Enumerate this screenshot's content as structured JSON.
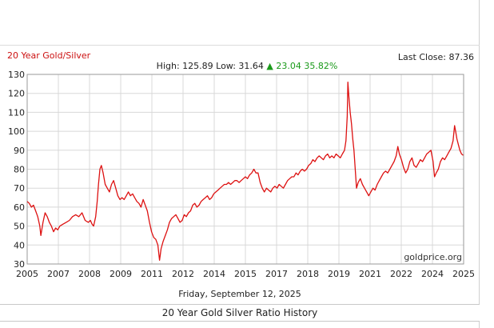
{
  "header": {
    "title": "20 Year Gold/Silver",
    "last_close_label": "Last Close: 87.36",
    "stats_prefix": "High: 125.89  Low: 31.64",
    "stats_arrow": "▲",
    "stats_change": "23.04 35.82%",
    "watermark": "goldprice.org"
  },
  "date_label": "Friday, September 12, 2025",
  "footer_title": "20 Year Gold Silver Ratio History",
  "colors": {
    "line": "#dd1111",
    "up": "#1a9a1a",
    "grid": "#d8d8d8"
  },
  "chart_data": {
    "type": "line",
    "xlim": [
      2005,
      2025.7
    ],
    "ylim": [
      30,
      130
    ],
    "x_ticks": [
      "2005",
      "2007",
      "2008",
      "2009",
      "2011",
      "2012",
      "2014",
      "2015",
      "2017",
      "2018",
      "2019",
      "2021",
      "2022",
      "2024",
      "2025"
    ],
    "y_ticks": [
      30,
      40,
      50,
      60,
      70,
      80,
      90,
      100,
      110,
      120,
      130
    ],
    "grid": true,
    "series": [
      {
        "points": [
          [
            2005.0,
            63
          ],
          [
            2005.1,
            62
          ],
          [
            2005.2,
            60
          ],
          [
            2005.3,
            61
          ],
          [
            2005.4,
            58
          ],
          [
            2005.5,
            55
          ],
          [
            2005.6,
            50
          ],
          [
            2005.65,
            45
          ],
          [
            2005.75,
            52
          ],
          [
            2005.85,
            57
          ],
          [
            2005.95,
            55
          ],
          [
            2006.05,
            52
          ],
          [
            2006.15,
            50
          ],
          [
            2006.25,
            47
          ],
          [
            2006.35,
            49
          ],
          [
            2006.45,
            48
          ],
          [
            2006.55,
            50
          ],
          [
            2006.7,
            51
          ],
          [
            2006.85,
            52
          ],
          [
            2007.0,
            53
          ],
          [
            2007.15,
            55
          ],
          [
            2007.3,
            56
          ],
          [
            2007.45,
            55
          ],
          [
            2007.6,
            57
          ],
          [
            2007.75,
            53
          ],
          [
            2007.9,
            52
          ],
          [
            2008.0,
            53
          ],
          [
            2008.08,
            51
          ],
          [
            2008.15,
            50
          ],
          [
            2008.25,
            55
          ],
          [
            2008.32,
            63
          ],
          [
            2008.38,
            72
          ],
          [
            2008.45,
            80
          ],
          [
            2008.52,
            82
          ],
          [
            2008.6,
            78
          ],
          [
            2008.7,
            72
          ],
          [
            2008.8,
            70
          ],
          [
            2008.9,
            68
          ],
          [
            2009.0,
            72
          ],
          [
            2009.1,
            74
          ],
          [
            2009.2,
            70
          ],
          [
            2009.3,
            66
          ],
          [
            2009.4,
            64
          ],
          [
            2009.5,
            65
          ],
          [
            2009.6,
            64
          ],
          [
            2009.7,
            66
          ],
          [
            2009.8,
            68
          ],
          [
            2009.9,
            66
          ],
          [
            2010.0,
            67
          ],
          [
            2010.1,
            65
          ],
          [
            2010.2,
            63
          ],
          [
            2010.3,
            62
          ],
          [
            2010.4,
            60
          ],
          [
            2010.5,
            64
          ],
          [
            2010.6,
            61
          ],
          [
            2010.7,
            58
          ],
          [
            2010.8,
            52
          ],
          [
            2010.9,
            47
          ],
          [
            2011.0,
            44
          ],
          [
            2011.1,
            43
          ],
          [
            2011.2,
            40
          ],
          [
            2011.28,
            32
          ],
          [
            2011.35,
            38
          ],
          [
            2011.45,
            42
          ],
          [
            2011.55,
            45
          ],
          [
            2011.65,
            48
          ],
          [
            2011.75,
            52
          ],
          [
            2011.85,
            54
          ],
          [
            2011.95,
            55
          ],
          [
            2012.05,
            56
          ],
          [
            2012.15,
            54
          ],
          [
            2012.25,
            52
          ],
          [
            2012.35,
            53
          ],
          [
            2012.45,
            56
          ],
          [
            2012.55,
            55
          ],
          [
            2012.65,
            57
          ],
          [
            2012.75,
            58
          ],
          [
            2012.85,
            61
          ],
          [
            2012.95,
            62
          ],
          [
            2013.05,
            60
          ],
          [
            2013.15,
            61
          ],
          [
            2013.25,
            63
          ],
          [
            2013.35,
            64
          ],
          [
            2013.45,
            65
          ],
          [
            2013.55,
            66
          ],
          [
            2013.65,
            64
          ],
          [
            2013.75,
            65
          ],
          [
            2013.85,
            67
          ],
          [
            2013.95,
            68
          ],
          [
            2014.05,
            69
          ],
          [
            2014.15,
            70
          ],
          [
            2014.25,
            71
          ],
          [
            2014.35,
            72
          ],
          [
            2014.45,
            72
          ],
          [
            2014.55,
            73
          ],
          [
            2014.65,
            72
          ],
          [
            2014.75,
            73
          ],
          [
            2014.85,
            74
          ],
          [
            2014.95,
            74
          ],
          [
            2015.05,
            73
          ],
          [
            2015.15,
            74
          ],
          [
            2015.25,
            75
          ],
          [
            2015.35,
            76
          ],
          [
            2015.45,
            75
          ],
          [
            2015.55,
            77
          ],
          [
            2015.65,
            78
          ],
          [
            2015.75,
            80
          ],
          [
            2015.85,
            78
          ],
          [
            2015.95,
            78
          ],
          [
            2016.05,
            73
          ],
          [
            2016.15,
            70
          ],
          [
            2016.25,
            68
          ],
          [
            2016.35,
            70
          ],
          [
            2016.45,
            69
          ],
          [
            2016.55,
            68
          ],
          [
            2016.65,
            70
          ],
          [
            2016.75,
            71
          ],
          [
            2016.85,
            70
          ],
          [
            2016.95,
            72
          ],
          [
            2017.05,
            71
          ],
          [
            2017.15,
            70
          ],
          [
            2017.25,
            72
          ],
          [
            2017.35,
            74
          ],
          [
            2017.45,
            75
          ],
          [
            2017.55,
            76
          ],
          [
            2017.65,
            76
          ],
          [
            2017.75,
            78
          ],
          [
            2017.85,
            77
          ],
          [
            2017.95,
            79
          ],
          [
            2018.05,
            80
          ],
          [
            2018.15,
            79
          ],
          [
            2018.25,
            80
          ],
          [
            2018.35,
            82
          ],
          [
            2018.45,
            83
          ],
          [
            2018.55,
            85
          ],
          [
            2018.65,
            84
          ],
          [
            2018.75,
            86
          ],
          [
            2018.85,
            87
          ],
          [
            2018.95,
            86
          ],
          [
            2019.05,
            85
          ],
          [
            2019.15,
            87
          ],
          [
            2019.25,
            88
          ],
          [
            2019.35,
            86
          ],
          [
            2019.45,
            87
          ],
          [
            2019.55,
            86
          ],
          [
            2019.65,
            88
          ],
          [
            2019.75,
            87
          ],
          [
            2019.85,
            86
          ],
          [
            2019.95,
            88
          ],
          [
            2020.05,
            90
          ],
          [
            2020.12,
            95
          ],
          [
            2020.18,
            108
          ],
          [
            2020.21,
            125.9
          ],
          [
            2020.26,
            118
          ],
          [
            2020.32,
            110
          ],
          [
            2020.38,
            104
          ],
          [
            2020.44,
            96
          ],
          [
            2020.5,
            90
          ],
          [
            2020.56,
            80
          ],
          [
            2020.62,
            70
          ],
          [
            2020.7,
            73
          ],
          [
            2020.8,
            75
          ],
          [
            2020.9,
            72
          ],
          [
            2021.0,
            70
          ],
          [
            2021.1,
            68
          ],
          [
            2021.2,
            66
          ],
          [
            2021.3,
            68
          ],
          [
            2021.4,
            70
          ],
          [
            2021.5,
            69
          ],
          [
            2021.6,
            72
          ],
          [
            2021.7,
            74
          ],
          [
            2021.8,
            76
          ],
          [
            2021.9,
            78
          ],
          [
            2022.0,
            79
          ],
          [
            2022.1,
            78
          ],
          [
            2022.2,
            80
          ],
          [
            2022.3,
            82
          ],
          [
            2022.4,
            84
          ],
          [
            2022.5,
            87
          ],
          [
            2022.58,
            92
          ],
          [
            2022.65,
            88
          ],
          [
            2022.75,
            85
          ],
          [
            2022.85,
            81
          ],
          [
            2022.95,
            78
          ],
          [
            2023.05,
            80
          ],
          [
            2023.15,
            84
          ],
          [
            2023.25,
            86
          ],
          [
            2023.35,
            82
          ],
          [
            2023.45,
            81
          ],
          [
            2023.55,
            83
          ],
          [
            2023.65,
            85
          ],
          [
            2023.75,
            84
          ],
          [
            2023.85,
            86
          ],
          [
            2023.95,
            88
          ],
          [
            2024.05,
            89
          ],
          [
            2024.15,
            90
          ],
          [
            2024.25,
            84
          ],
          [
            2024.32,
            76
          ],
          [
            2024.4,
            78
          ],
          [
            2024.5,
            80
          ],
          [
            2024.6,
            84
          ],
          [
            2024.7,
            86
          ],
          [
            2024.8,
            85
          ],
          [
            2024.9,
            87
          ],
          [
            2025.0,
            89
          ],
          [
            2025.1,
            91
          ],
          [
            2025.2,
            95
          ],
          [
            2025.27,
            103
          ],
          [
            2025.32,
            100
          ],
          [
            2025.38,
            96
          ],
          [
            2025.45,
            93
          ],
          [
            2025.52,
            90
          ],
          [
            2025.6,
            88
          ],
          [
            2025.68,
            87.36
          ]
        ]
      }
    ]
  }
}
